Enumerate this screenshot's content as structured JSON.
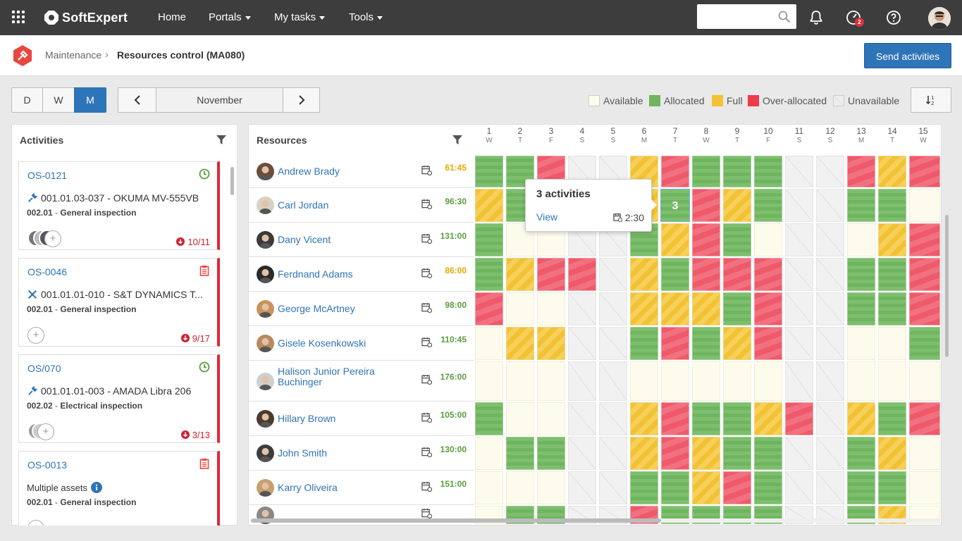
{
  "topbar": {
    "brand": "SoftExpert",
    "nav": [
      "Home",
      "Portals",
      "My tasks",
      "Tools"
    ],
    "search_placeholder": "",
    "notification_badge": "2"
  },
  "breadcrumb": {
    "parent": "Maintenance",
    "current": "Resources control (MA080)"
  },
  "send_button": "Send activities",
  "view_toggle": {
    "day": "D",
    "week": "W",
    "month": "M",
    "active": "M"
  },
  "month_label": "November",
  "legend": [
    {
      "label": "Available",
      "color": "#fdfcec"
    },
    {
      "label": "Allocated",
      "color": "#6fb55f"
    },
    {
      "label": "Full",
      "color": "#f2c233"
    },
    {
      "label": "Over-allocated",
      "color": "#ef3b4c"
    },
    {
      "label": "Unavailable",
      "color": "#eeeeee"
    }
  ],
  "activities": {
    "title": "Activities",
    "cards": [
      {
        "id": "OS-0121",
        "asset": "001.01.03-037 - OKUMA MV-555VB",
        "task_code": "002.01",
        "task_name": "General inspection",
        "date": "10/11",
        "status_icon": "clock-icon",
        "asset_icon": "wrench-icon"
      },
      {
        "id": "OS-0046",
        "asset": "001.01.01-010 - S&T DYNAMICS T...",
        "task_code": "002.01",
        "task_name": "General inspection",
        "date": "9/17",
        "status_icon": "clipboard-icon",
        "asset_icon": "tools-icon"
      },
      {
        "id": "OS/070",
        "asset": "001.01.01-003 - AMADA Libra 206",
        "task_code": "002.02",
        "task_name": "Electrical inspection",
        "date": "3/13",
        "status_icon": "clock-icon",
        "asset_icon": "wrench-icon"
      },
      {
        "id": "OS-0013",
        "asset": "Multiple assets",
        "task_code": "002.01",
        "task_name": "General inspection",
        "date": "",
        "status_icon": "clipboard-icon",
        "asset_icon": "info-icon"
      }
    ]
  },
  "resources": {
    "title": "Resources",
    "rows": [
      {
        "name": "Andrew Brady",
        "hours": "61:45",
        "hours_color": "#e6a800"
      },
      {
        "name": "Carl Jordan",
        "hours": "96:30",
        "hours_color": "#5a9e3e"
      },
      {
        "name": "Dany Vicent",
        "hours": "131:00",
        "hours_color": "#5a9e3e"
      },
      {
        "name": "Ferdnand Adams",
        "hours": "86:00",
        "hours_color": "#e6a800"
      },
      {
        "name": "George McArtney",
        "hours": "98:00",
        "hours_color": "#5a9e3e"
      },
      {
        "name": "Gisele Kosenkowski",
        "hours": "110:45",
        "hours_color": "#5a9e3e"
      },
      {
        "name": "Halison Junior Pereira Buchinger",
        "hours": "176:00",
        "hours_color": "#5a9e3e"
      },
      {
        "name": "Hillary Brown",
        "hours": "105:00",
        "hours_color": "#5a9e3e"
      },
      {
        "name": "John Smith",
        "hours": "130:00",
        "hours_color": "#5a9e3e"
      },
      {
        "name": "Karry Oliveira",
        "hours": "151:00",
        "hours_color": "#5a9e3e"
      },
      {
        "name": "",
        "hours": "",
        "hours_color": "#5a9e3e"
      }
    ]
  },
  "days": [
    {
      "n": "1",
      "d": "W"
    },
    {
      "n": "2",
      "d": "T"
    },
    {
      "n": "3",
      "d": "F"
    },
    {
      "n": "4",
      "d": "S"
    },
    {
      "n": "5",
      "d": "S"
    },
    {
      "n": "6",
      "d": "M"
    },
    {
      "n": "7",
      "d": "T"
    },
    {
      "n": "8",
      "d": "W"
    },
    {
      "n": "9",
      "d": "T"
    },
    {
      "n": "10",
      "d": "F"
    },
    {
      "n": "11",
      "d": "S"
    },
    {
      "n": "12",
      "d": "S"
    },
    {
      "n": "13",
      "d": "M"
    },
    {
      "n": "14",
      "d": "T"
    },
    {
      "n": "15",
      "d": "W"
    }
  ],
  "grid": [
    "LLOUUFOLLLUUOFO",
    "FLOUUFLOFLUULLA",
    "LAAUULFOLAUUAFO",
    "LFOOUFLOOOUULLO",
    "OAAUUFFFLOUULLO",
    "AFFUULOLFOUUAAL",
    "AAAUUAAAAAUUAAA",
    "LAAUUFOLLFOUFLO",
    "ALLUUFOFLLUULFA",
    "AAAUULLFOLUULLA",
    "ALLUUOLLLLUULFA"
  ],
  "popup": {
    "title": "3 activities",
    "link": "View",
    "time": "2:30",
    "cell_count": "3"
  }
}
